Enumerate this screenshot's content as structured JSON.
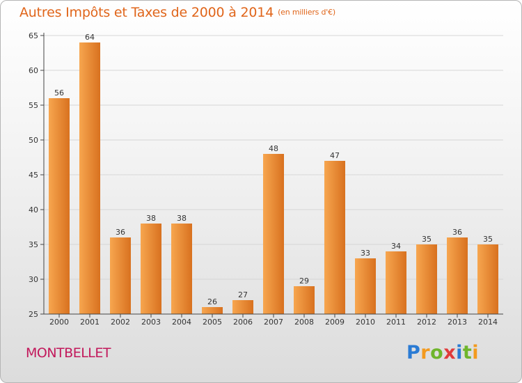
{
  "colors": {
    "title": "#e0651a",
    "city": "#c2185b",
    "bar_light": "#f7a64f",
    "bar_dark": "#d8711f",
    "axis": "#444444",
    "grid": "#d6d6d6"
  },
  "chart_data": {
    "type": "bar",
    "title": "Autres Impôts et Taxes de 2000 à 2014",
    "subtitle": "(en milliers d'€)",
    "xlabel": "",
    "ylabel": "",
    "categories": [
      "2000",
      "2001",
      "2002",
      "2003",
      "2004",
      "2005",
      "2006",
      "2007",
      "2008",
      "2009",
      "2010",
      "2011",
      "2012",
      "2013",
      "2014"
    ],
    "values": [
      56,
      64,
      36,
      38,
      38,
      26,
      27,
      48,
      29,
      47,
      33,
      34,
      35,
      36,
      35
    ],
    "ylim": [
      25,
      65
    ],
    "yticks": [
      25,
      30,
      35,
      40,
      45,
      50,
      55,
      60,
      65
    ],
    "grid": true,
    "legend": "none"
  },
  "footer": {
    "city": "MONTBELLET",
    "logo_letters": [
      "P",
      "r",
      "o",
      "x",
      "i",
      "t",
      "i"
    ]
  }
}
